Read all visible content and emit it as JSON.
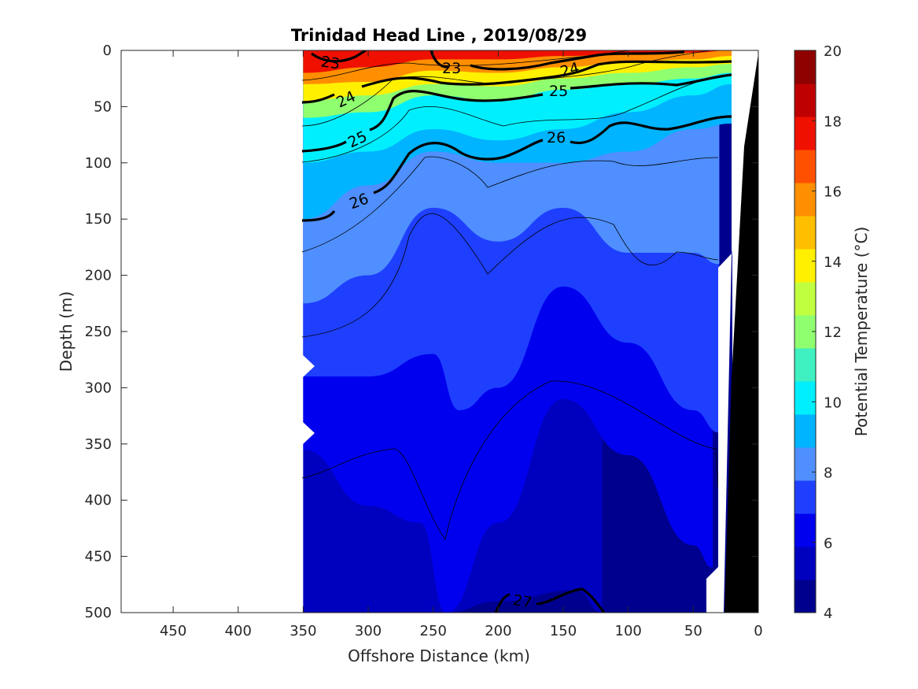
{
  "chart_data": {
    "type": "contour",
    "title": "Trinidad Head Line , 2019/08/29",
    "xlabel": "Offshore Distance (km)",
    "ylabel": "Depth (m)",
    "xlim": [
      490,
      0
    ],
    "ylim": [
      500,
      0
    ],
    "x_ticks": [
      "450",
      "400",
      "350",
      "300",
      "250",
      "200",
      "150",
      "100",
      "50",
      "0"
    ],
    "y_ticks": [
      "0",
      "50",
      "100",
      "150",
      "200",
      "250",
      "300",
      "350",
      "400",
      "450",
      "500"
    ],
    "colorbar": {
      "label": "Potential Temperature (°C)",
      "range": [
        4,
        20
      ],
      "ticks": [
        "4",
        "6",
        "8",
        "10",
        "12",
        "14",
        "16",
        "18",
        "20"
      ],
      "colors": [
        "#00008f",
        "#0000bf",
        "#0000ef",
        "#1f3fff",
        "#4f8fff",
        "#00b4ff",
        "#00efff",
        "#3ff0c0",
        "#8fff6f",
        "#c0ff40",
        "#fff000",
        "#ffbf00",
        "#ff8f00",
        "#ff5000",
        "#ef1000",
        "#bf0000",
        "#8f0000"
      ]
    },
    "sampled_range_km": [
      350,
      20
    ],
    "density_contours": [
      {
        "level": 23,
        "labels": [
          "23",
          "23"
        ]
      },
      {
        "level": 24,
        "labels": [
          "24",
          "24"
        ]
      },
      {
        "level": 25,
        "labels": [
          "25",
          "25"
        ]
      },
      {
        "level": 26,
        "labels": [
          "26",
          "26"
        ]
      },
      {
        "level": 27,
        "labels": [
          "27"
        ]
      }
    ],
    "temperature_layers": [
      {
        "band": [
          4,
          5
        ],
        "depths": [
          {
            "x": 350,
            "top": 500
          },
          {
            "x": 240,
            "top": 500
          },
          {
            "x": 200,
            "top": 490
          },
          {
            "x": 140,
            "top": 480
          },
          {
            "x": 120,
            "top": 500
          }
        ]
      },
      {
        "band": [
          5,
          6
        ],
        "depths": [
          {
            "x": 350,
            "top": 355
          },
          {
            "x": 300,
            "top": 405
          },
          {
            "x": 260,
            "top": 420
          },
          {
            "x": 240,
            "top": 500
          },
          {
            "x": 200,
            "top": 420
          },
          {
            "x": 150,
            "top": 310
          },
          {
            "x": 100,
            "top": 360
          },
          {
            "x": 50,
            "top": 440
          },
          {
            "x": 35,
            "top": 460
          }
        ]
      },
      {
        "band": [
          6,
          7
        ],
        "depths": [
          {
            "x": 350,
            "top": 290
          },
          {
            "x": 300,
            "top": 290
          },
          {
            "x": 250,
            "top": 270
          },
          {
            "x": 230,
            "top": 320
          },
          {
            "x": 200,
            "top": 300
          },
          {
            "x": 150,
            "top": 210
          },
          {
            "x": 100,
            "top": 260
          },
          {
            "x": 50,
            "top": 320
          },
          {
            "x": 30,
            "top": 340
          }
        ]
      },
      {
        "band": [
          7,
          8
        ],
        "depths": [
          {
            "x": 350,
            "top": 225
          },
          {
            "x": 300,
            "top": 200
          },
          {
            "x": 250,
            "top": 140
          },
          {
            "x": 200,
            "top": 170
          },
          {
            "x": 150,
            "top": 140
          },
          {
            "x": 100,
            "top": 180
          },
          {
            "x": 50,
            "top": 180
          },
          {
            "x": 30,
            "top": 190
          }
        ]
      },
      {
        "band": [
          8,
          9
        ],
        "depths": [
          {
            "x": 350,
            "top": 150
          },
          {
            "x": 300,
            "top": 120
          },
          {
            "x": 250,
            "top": 90
          },
          {
            "x": 200,
            "top": 100
          },
          {
            "x": 150,
            "top": 100
          },
          {
            "x": 100,
            "top": 90
          },
          {
            "x": 50,
            "top": 70
          },
          {
            "x": 20,
            "top": 65
          }
        ]
      },
      {
        "band": [
          9,
          10
        ],
        "depths": [
          {
            "x": 350,
            "top": 100
          },
          {
            "x": 300,
            "top": 90
          },
          {
            "x": 250,
            "top": 70
          },
          {
            "x": 200,
            "top": 80
          },
          {
            "x": 150,
            "top": 70
          },
          {
            "x": 100,
            "top": 55
          },
          {
            "x": 50,
            "top": 40
          },
          {
            "x": 20,
            "top": 30
          }
        ]
      },
      {
        "band": [
          10,
          12
        ],
        "depths": [
          {
            "x": 350,
            "top": 60
          },
          {
            "x": 300,
            "top": 55
          },
          {
            "x": 250,
            "top": 40
          },
          {
            "x": 200,
            "top": 45
          },
          {
            "x": 150,
            "top": 35
          },
          {
            "x": 100,
            "top": 30
          },
          {
            "x": 50,
            "top": 25
          },
          {
            "x": 20,
            "top": 20
          }
        ]
      },
      {
        "band": [
          12,
          14
        ],
        "depths": [
          {
            "x": 350,
            "top": 45
          },
          {
            "x": 300,
            "top": 40
          },
          {
            "x": 250,
            "top": 30
          },
          {
            "x": 200,
            "top": 32
          },
          {
            "x": 150,
            "top": 25
          },
          {
            "x": 100,
            "top": 20
          },
          {
            "x": 50,
            "top": 15
          },
          {
            "x": 20,
            "top": 12
          }
        ]
      },
      {
        "band": [
          14,
          16
        ],
        "depths": [
          {
            "x": 350,
            "top": 30
          },
          {
            "x": 300,
            "top": 28
          },
          {
            "x": 250,
            "top": 18
          },
          {
            "x": 200,
            "top": 20
          },
          {
            "x": 150,
            "top": 15
          },
          {
            "x": 100,
            "top": 10
          },
          {
            "x": 50,
            "top": 8
          },
          {
            "x": 20,
            "top": 5
          }
        ]
      },
      {
        "band": [
          16,
          18
        ],
        "depths": [
          {
            "x": 350,
            "top": 20
          },
          {
            "x": 300,
            "top": 15
          },
          {
            "x": 250,
            "top": 8
          },
          {
            "x": 200,
            "top": 8
          },
          {
            "x": 150,
            "top": 5
          },
          {
            "x": 100,
            "top": 3
          },
          {
            "x": 50,
            "top": 2
          },
          {
            "x": 20,
            "top": 0
          }
        ]
      },
      {
        "band": [
          18,
          20
        ],
        "depths": [
          {
            "x": 350,
            "top": 0
          },
          {
            "x": 20,
            "top": 0
          }
        ]
      }
    ]
  }
}
